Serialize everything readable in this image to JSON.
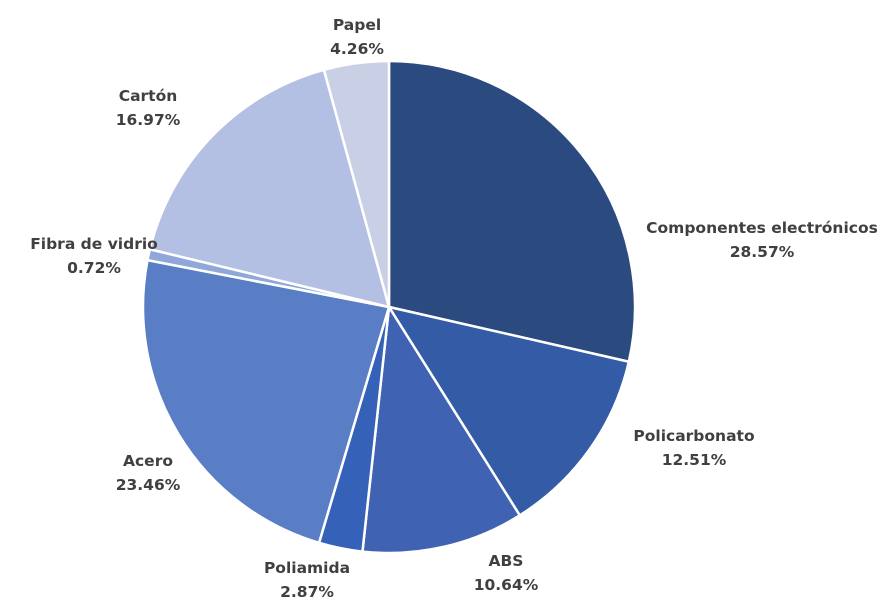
{
  "chart_data": {
    "type": "pie",
    "title": "",
    "start": "12 o'clock",
    "direction": "clockwise",
    "legend": "none",
    "slices": [
      {
        "label": "Componentes electrónicos",
        "value": 28.57,
        "value_label": "28.57%",
        "color": "#2b4a80"
      },
      {
        "label": "Policarbonato",
        "value": 12.51,
        "value_label": "12.51%",
        "color": "#335ba6"
      },
      {
        "label": "ABS",
        "value": 10.64,
        "value_label": "10.64%",
        "color": "#3f63b2"
      },
      {
        "label": "Poliamida",
        "value": 2.87,
        "value_label": "2.87%",
        "color": "#3561b9"
      },
      {
        "label": "Acero",
        "value": 23.46,
        "value_label": "23.46%",
        "color": "#5a7ec6"
      },
      {
        "label": "Fibra de vidrio",
        "value": 0.72,
        "value_label": "0.72%",
        "color": "#8fa7d9"
      },
      {
        "label": "Cartón",
        "value": 16.97,
        "value_label": "16.97%",
        "color": "#b3c0e3"
      },
      {
        "label": "Papel",
        "value": 4.26,
        "value_label": "4.26%",
        "color": "#c9d0e6"
      }
    ]
  }
}
